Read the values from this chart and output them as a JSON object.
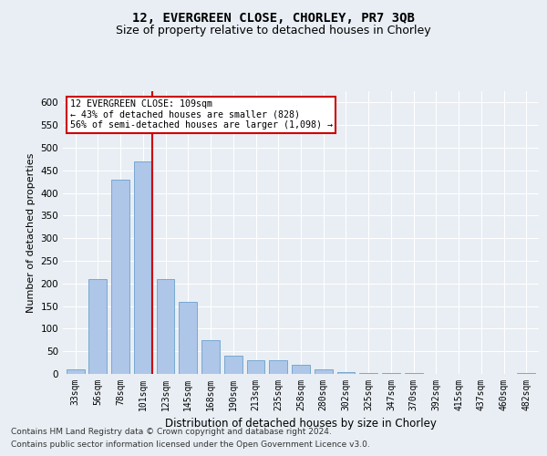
{
  "title": "12, EVERGREEN CLOSE, CHORLEY, PR7 3QB",
  "subtitle": "Size of property relative to detached houses in Chorley",
  "xlabel": "Distribution of detached houses by size in Chorley",
  "ylabel": "Number of detached properties",
  "categories": [
    "33sqm",
    "56sqm",
    "78sqm",
    "101sqm",
    "123sqm",
    "145sqm",
    "168sqm",
    "190sqm",
    "213sqm",
    "235sqm",
    "258sqm",
    "280sqm",
    "302sqm",
    "325sqm",
    "347sqm",
    "370sqm",
    "392sqm",
    "415sqm",
    "437sqm",
    "460sqm",
    "482sqm"
  ],
  "values": [
    10,
    210,
    430,
    470,
    210,
    160,
    75,
    40,
    30,
    30,
    20,
    10,
    5,
    3,
    2,
    2,
    1,
    0,
    0,
    0,
    2
  ],
  "bar_color": "#aec6e8",
  "bar_edge_color": "#6aa0cc",
  "vline_color": "#cc0000",
  "annotation_text": "12 EVERGREEN CLOSE: 109sqm\n← 43% of detached houses are smaller (828)\n56% of semi-detached houses are larger (1,098) →",
  "annotation_box_facecolor": "#ffffff",
  "annotation_box_edgecolor": "#cc0000",
  "ylim": [
    0,
    625
  ],
  "yticks": [
    0,
    50,
    100,
    150,
    200,
    250,
    300,
    350,
    400,
    450,
    500,
    550,
    600
  ],
  "footer1": "Contains HM Land Registry data © Crown copyright and database right 2024.",
  "footer2": "Contains public sector information licensed under the Open Government Licence v3.0.",
  "bg_color": "#e8eef4",
  "plot_bg_color": "#e8eef4",
  "title_fontsize": 10,
  "subtitle_fontsize": 9,
  "xlabel_fontsize": 8.5,
  "ylabel_fontsize": 8,
  "tick_fontsize": 7,
  "footer_fontsize": 6.5
}
